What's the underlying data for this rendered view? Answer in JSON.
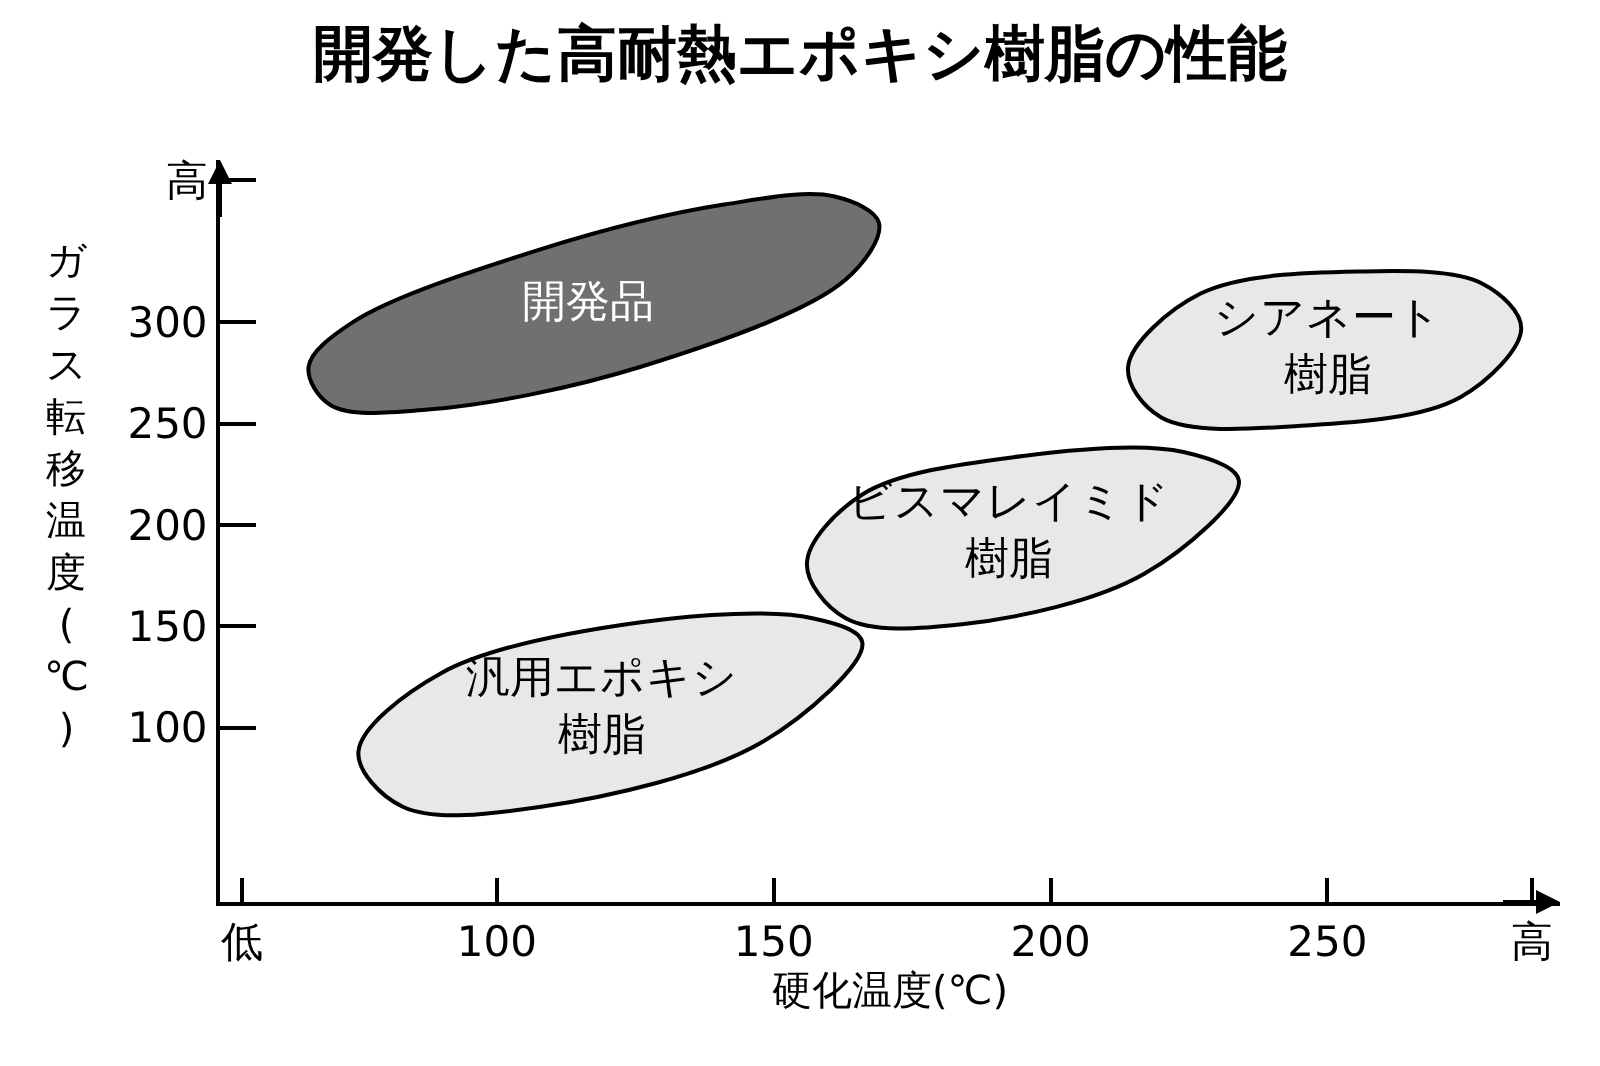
{
  "chart_data": {
    "type": "area",
    "title": "開発した高耐熱エポキシ樹脂の性能",
    "xlabel": "硬化温度(℃)",
    "ylabel": "ガラス転移温度(℃)",
    "xlim": [
      50,
      292
    ],
    "ylim": [
      14,
      380
    ],
    "xticks": [
      {
        "value": 54,
        "label": "低"
      },
      100,
      150,
      200,
      250,
      {
        "value": 287,
        "label": "高"
      }
    ],
    "yticks": [
      100,
      150,
      200,
      250,
      300,
      {
        "value": 370,
        "label": "高"
      }
    ],
    "series": [
      {
        "name": "開発品",
        "color": "#707070",
        "x": [
          169,
          161,
          141,
          108,
          74,
          66,
          70,
          88,
          126,
          163
        ],
        "values": [
          349,
          362,
          358,
          336,
          300,
          278,
          259,
          257,
          278,
          321
        ]
      },
      {
        "name": "シアネート樹脂",
        "color": "#e8e8e8",
        "x": [
          285,
          278,
          256,
          227,
          214,
          220,
          246,
          274
        ],
        "values": [
          297,
          319,
          325,
          314,
          278,
          253,
          249,
          263
        ]
      },
      {
        "name": "ビスマレイミド樹脂",
        "color": "#e8e8e8",
        "x": [
          234,
          224,
          195,
          166,
          156,
          163,
          184,
          217
        ],
        "values": [
          222,
          236,
          234,
          215,
          181,
          154,
          151,
          176
        ]
      },
      {
        "name": "汎用エポキシ樹脂",
        "color": "#e8e8e8",
        "x": [
          166,
          157,
          126,
          90,
          75,
          83,
          108,
          148
        ],
        "values": [
          142,
          154,
          152,
          127,
          88,
          61,
          61,
          93
        ]
      }
    ]
  }
}
